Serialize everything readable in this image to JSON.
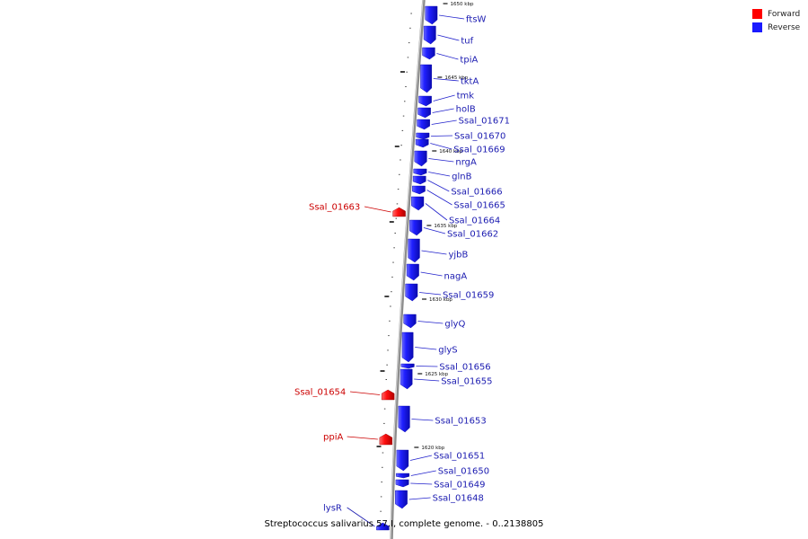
{
  "legend": {
    "forward_label": "Forward",
    "reverse_label": "Reverse",
    "forward_color": "#ff0000",
    "reverse_color": "#1a1aff"
  },
  "caption": "Streptococcus salivarius 57.I, complete genome. - 0..2138805",
  "scale_labels": [
    "1650 kbp",
    "1645 kbp",
    "1640 kbp",
    "1635 kbp",
    "1630 kbp",
    "1625 kbp",
    "1620 kbp"
  ],
  "reverse_genes": [
    "ftsW",
    "tuf",
    "tpiA",
    "tktA",
    "tmk",
    "holB",
    "Ssal_01671",
    "Ssal_01670",
    "Ssal_01669",
    "nrgA",
    "glnB",
    "Ssal_01666",
    "Ssal_01665",
    "Ssal_01664",
    "Ssal_01662",
    "yjbB",
    "nagA",
    "Ssal_01659",
    "glyQ",
    "glyS",
    "Ssal_01656",
    "Ssal_01655",
    "Ssal_01653",
    "Ssal_01651",
    "Ssal_01650",
    "Ssal_01649",
    "Ssal_01648"
  ],
  "forward_genes": [
    "Ssal_01663",
    "Ssal_01654",
    "ppiA",
    "lysR"
  ]
}
